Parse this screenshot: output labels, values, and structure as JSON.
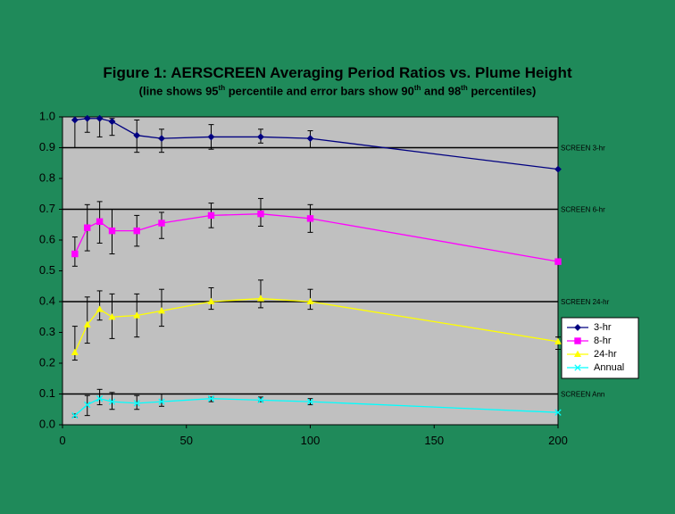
{
  "title": "Figure 1:  AERSCREEN Averaging Period Ratios vs. Plume Height",
  "subtitle": {
    "prefix": "(line shows 95",
    "sup1": "th",
    "mid1": " percentile and error bars show 90",
    "sup2": "th",
    "mid2": " and 98",
    "sup3": "th",
    "suffix": " percentiles)"
  },
  "colors": {
    "background": "#1f8a5a",
    "plot_area": "#c0c0c0",
    "s3hr": "#000080",
    "s8hr": "#ff00ff",
    "s24hr": "#ffff00",
    "sAnnual": "#00ffff"
  },
  "chart_data": {
    "type": "line",
    "xlim": [
      0,
      200
    ],
    "ylim": [
      0.0,
      1.0
    ],
    "xticks": [
      "0",
      "50",
      "100",
      "150",
      "200"
    ],
    "yticks": [
      "0.0",
      "0.1",
      "0.2",
      "0.3",
      "0.4",
      "0.5",
      "0.6",
      "0.7",
      "0.8",
      "0.9",
      "1.0"
    ],
    "grid": false,
    "legend_position": "right",
    "reference_lines": [
      {
        "label": "SCREEN 3-hr",
        "y": 0.9
      },
      {
        "label": "SCREEN 6-hr",
        "y": 0.7
      },
      {
        "label": "SCREEN 24-hr",
        "y": 0.4
      },
      {
        "label": "SCREEN Ann",
        "y": 0.1
      }
    ],
    "series": [
      {
        "name": "3-hr",
        "color": "#000080",
        "marker": "diamond",
        "x": [
          5,
          10,
          15,
          20,
          30,
          40,
          60,
          80,
          100,
          200
        ],
        "y": [
          0.99,
          0.995,
          0.995,
          0.985,
          0.94,
          0.93,
          0.935,
          0.935,
          0.93,
          0.83
        ],
        "err_low": [
          0.9,
          0.95,
          0.935,
          0.94,
          0.885,
          0.885,
          0.895,
          0.915,
          0.9,
          0.83
        ],
        "err_high": [
          1.0,
          1.0,
          1.0,
          0.995,
          0.99,
          0.96,
          0.975,
          0.96,
          0.955,
          0.83
        ]
      },
      {
        "name": "8-hr",
        "color": "#ff00ff",
        "marker": "square",
        "x": [
          5,
          10,
          15,
          20,
          30,
          40,
          60,
          80,
          100,
          200
        ],
        "y": [
          0.555,
          0.64,
          0.66,
          0.63,
          0.63,
          0.655,
          0.68,
          0.685,
          0.67,
          0.53
        ],
        "err_low": [
          0.515,
          0.565,
          0.59,
          0.555,
          0.58,
          0.605,
          0.64,
          0.645,
          0.625,
          0.53
        ],
        "err_high": [
          0.61,
          0.715,
          0.725,
          0.7,
          0.68,
          0.69,
          0.72,
          0.735,
          0.715,
          0.53
        ]
      },
      {
        "name": "24-hr",
        "color": "#ffff00",
        "marker": "triangle",
        "x": [
          5,
          10,
          15,
          20,
          30,
          40,
          60,
          80,
          100,
          200
        ],
        "y": [
          0.235,
          0.325,
          0.375,
          0.35,
          0.355,
          0.37,
          0.4,
          0.41,
          0.4,
          0.27
        ],
        "err_low": [
          0.21,
          0.265,
          0.34,
          0.28,
          0.285,
          0.32,
          0.375,
          0.38,
          0.375,
          0.245
        ],
        "err_high": [
          0.32,
          0.415,
          0.435,
          0.425,
          0.425,
          0.44,
          0.445,
          0.47,
          0.44,
          0.285
        ]
      },
      {
        "name": "Annual",
        "color": "#00ffff",
        "marker": "x",
        "x": [
          5,
          10,
          15,
          20,
          30,
          40,
          60,
          80,
          100,
          200
        ],
        "y": [
          0.03,
          0.065,
          0.085,
          0.075,
          0.07,
          0.075,
          0.085,
          0.08,
          0.075,
          0.04
        ],
        "err_low": [
          0.025,
          0.03,
          0.065,
          0.05,
          0.05,
          0.06,
          0.075,
          0.075,
          0.065,
          0.04
        ],
        "err_high": [
          0.035,
          0.095,
          0.115,
          0.105,
          0.095,
          0.1,
          0.09,
          0.09,
          0.085,
          0.04
        ]
      }
    ]
  }
}
